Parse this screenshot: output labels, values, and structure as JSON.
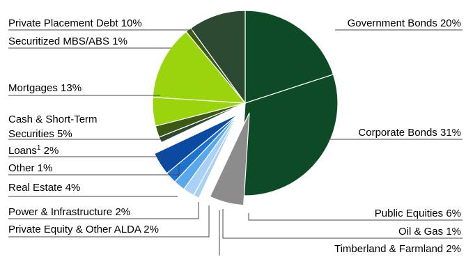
{
  "chart_data": {
    "type": "pie",
    "unit": "%",
    "colors": {
      "dark_green": "#0d4a26",
      "mid_dark_green": "#2c4a32",
      "lime_green": "#99d40c",
      "olive_dark": "#3c5a16",
      "blue_dark": "#0a4aa2",
      "blue_mid": "#1f71d2",
      "blue_light": "#5aa8ec",
      "blue_pale": "#a9d0f5",
      "gray": "#8c8c8c",
      "leader": "#444444"
    },
    "slices": [
      {
        "label": "Government Bonds 20%",
        "value": 20,
        "color_key": "dark_green",
        "group": "green"
      },
      {
        "label": "Corporate Bonds 31%",
        "value": 31,
        "color_key": "dark_green",
        "group": "green"
      },
      {
        "label": "Public Equities 6%",
        "value": 6,
        "color_key": "gray",
        "group": "gray"
      },
      {
        "label": "Oil & Gas 1%",
        "value": 1,
        "color_key": "blue_pale",
        "group": "blue"
      },
      {
        "label": "Timberland & Farmland 2%",
        "value": 2,
        "color_key": "blue_pale",
        "group": "blue"
      },
      {
        "label": "Private Equity & Other ALDA 2%",
        "value": 2,
        "color_key": "blue_light",
        "group": "blue"
      },
      {
        "label": "Power & Infrastructure 2%",
        "value": 2,
        "color_key": "blue_mid",
        "group": "blue"
      },
      {
        "label": "Real Estate 4%",
        "value": 4,
        "color_key": "blue_dark",
        "group": "blue"
      },
      {
        "label": "Other 1%",
        "value": 1,
        "color_key": "mid_dark_green",
        "group": "green"
      },
      {
        "label": "Loans 2%",
        "label_main": "Loans",
        "label_sup": "1",
        "label_tail": " 2%",
        "value": 2,
        "color_key": "olive_dark",
        "group": "green"
      },
      {
        "label": "Cash & Short-Term Securities 5%",
        "label_lines": [
          "Cash & Short-Term",
          "Securities 5%"
        ],
        "value": 5,
        "color_key": "lime_green",
        "group": "green"
      },
      {
        "label": "Mortgages 13%",
        "value": 13,
        "color_key": "lime_green",
        "group": "green"
      },
      {
        "label": "Securitized MBS/ABS 1%",
        "value": 1,
        "color_key": "olive_dark",
        "group": "green"
      },
      {
        "label": "Private Placement Debt 10%",
        "value": 10,
        "color_key": "mid_dark_green",
        "group": "green"
      }
    ]
  }
}
